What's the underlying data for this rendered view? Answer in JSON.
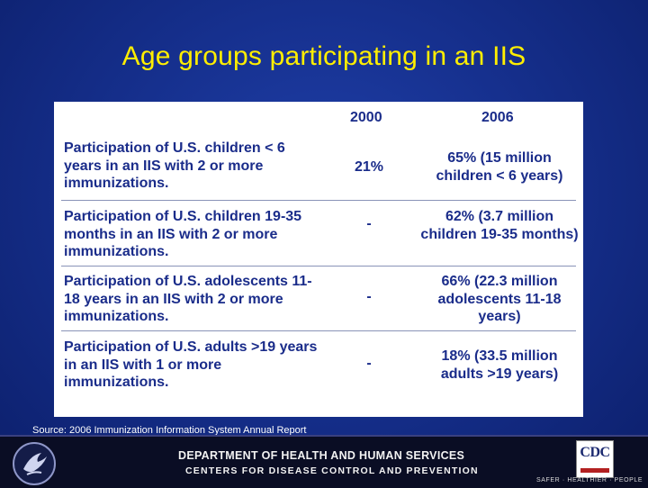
{
  "title": "Age groups participating in an IIS",
  "table": {
    "columns": [
      "2000",
      "2006"
    ],
    "rows": [
      {
        "description": "Participation of U.S. children < 6 years in an IIS with 2 or more immunizations.",
        "v2000": "21%",
        "v2006": "65% (15 million children < 6 years)"
      },
      {
        "description": "Participation of U.S. children 19-35 months in an IIS with 2 or more immunizations.",
        "v2000": "-",
        "v2006": "62% (3.7 million children 19-35 months)"
      },
      {
        "description": "Participation of U.S. adolescents 11-18 years in an IIS with 2 or more immunizations.",
        "v2000": "-",
        "v2006": "66% (22.3 million adolescents 11-18 years)"
      },
      {
        "description": "Participation of U.S. adults >19 years in an IIS with 1 or more immunizations.",
        "v2000": "-",
        "v2006": "18% (33.5 million adults >19 years)"
      }
    ]
  },
  "source": "Source:  2006 Immunization Information System Annual Report",
  "footer": {
    "department": "DEPARTMENT OF HEALTH AND HUMAN SERVICES",
    "centers": "CENTERS FOR DISEASE CONTROL AND PREVENTION",
    "cdc_logo_text": "CDC",
    "tagline": "SAFER · HEALTHIER · PEOPLE"
  },
  "colors": {
    "title": "#ffee00",
    "table_text": "#1a2c8a",
    "background": "#16308e"
  }
}
